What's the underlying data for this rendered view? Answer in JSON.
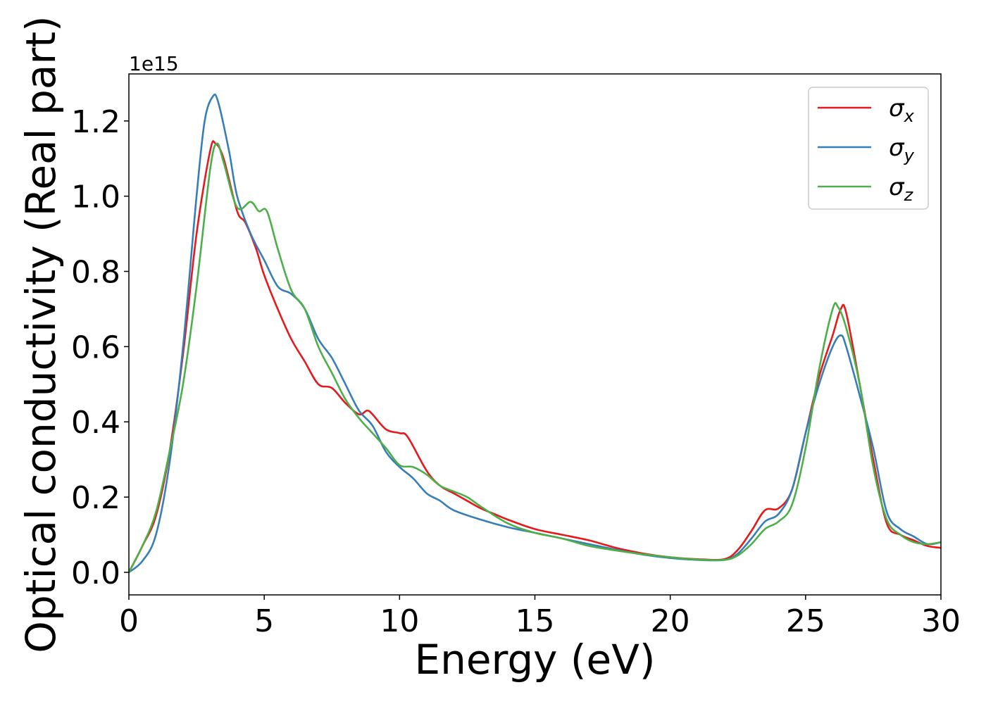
{
  "chart_data": {
    "type": "line",
    "title": "",
    "xlabel": "Energy (eV)",
    "ylabel": "Optical conductivity (Real part)",
    "y_offset_label": "1e15",
    "xlim": [
      0,
      30
    ],
    "ylim": [
      -0.06,
      1.325
    ],
    "x_ticks": [
      0,
      5,
      10,
      15,
      20,
      25,
      30
    ],
    "x_tick_labels": [
      "0",
      "5",
      "10",
      "15",
      "20",
      "25",
      "30"
    ],
    "y_ticks": [
      0.0,
      0.2,
      0.4,
      0.6,
      0.8,
      1.0,
      1.2
    ],
    "y_tick_labels": [
      "0.0",
      "0.2",
      "0.4",
      "0.6",
      "0.8",
      "1.0",
      "1.2"
    ],
    "grid": false,
    "legend_position": "top-right",
    "series": [
      {
        "name": "σx",
        "name_base": "σ",
        "name_sub": "x",
        "color": "#e41a1c",
        "points": [
          [
            0,
            0
          ],
          [
            0.5,
            0.07
          ],
          [
            1,
            0.15
          ],
          [
            1.5,
            0.32
          ],
          [
            2,
            0.58
          ],
          [
            2.5,
            0.9
          ],
          [
            3,
            1.12
          ],
          [
            3.2,
            1.14
          ],
          [
            3.5,
            1.1
          ],
          [
            4,
            0.96
          ],
          [
            4.3,
            0.93
          ],
          [
            4.7,
            0.86
          ],
          [
            5,
            0.79
          ],
          [
            5.5,
            0.7
          ],
          [
            6,
            0.62
          ],
          [
            6.5,
            0.56
          ],
          [
            7,
            0.5
          ],
          [
            7.5,
            0.49
          ],
          [
            8,
            0.45
          ],
          [
            8.5,
            0.42
          ],
          [
            8.8,
            0.43
          ],
          [
            9,
            0.42
          ],
          [
            9.5,
            0.38
          ],
          [
            10,
            0.37
          ],
          [
            10.3,
            0.36
          ],
          [
            11,
            0.27
          ],
          [
            11.5,
            0.23
          ],
          [
            12,
            0.21
          ],
          [
            12.5,
            0.19
          ],
          [
            13,
            0.17
          ],
          [
            13.5,
            0.155
          ],
          [
            14,
            0.14
          ],
          [
            15,
            0.115
          ],
          [
            16,
            0.1
          ],
          [
            17,
            0.085
          ],
          [
            18,
            0.065
          ],
          [
            19,
            0.05
          ],
          [
            20,
            0.04
          ],
          [
            21,
            0.035
          ],
          [
            22,
            0.035
          ],
          [
            22.5,
            0.06
          ],
          [
            23,
            0.11
          ],
          [
            23.5,
            0.165
          ],
          [
            24,
            0.17
          ],
          [
            24.5,
            0.22
          ],
          [
            25,
            0.37
          ],
          [
            25.5,
            0.52
          ],
          [
            26,
            0.63
          ],
          [
            26.3,
            0.7
          ],
          [
            26.5,
            0.69
          ],
          [
            27,
            0.5
          ],
          [
            27.5,
            0.3
          ],
          [
            28,
            0.13
          ],
          [
            28.5,
            0.1
          ],
          [
            29,
            0.085
          ],
          [
            29.5,
            0.07
          ],
          [
            30,
            0.065
          ]
        ]
      },
      {
        "name": "σy",
        "name_base": "σ",
        "name_sub": "y",
        "color": "#377eb8",
        "points": [
          [
            0,
            0
          ],
          [
            0.5,
            0.03
          ],
          [
            1,
            0.1
          ],
          [
            1.5,
            0.29
          ],
          [
            2,
            0.6
          ],
          [
            2.5,
            1.0
          ],
          [
            2.8,
            1.2
          ],
          [
            3.1,
            1.265
          ],
          [
            3.3,
            1.25
          ],
          [
            3.7,
            1.12
          ],
          [
            4,
            1.0
          ],
          [
            4.5,
            0.9
          ],
          [
            5,
            0.83
          ],
          [
            5.5,
            0.76
          ],
          [
            6,
            0.74
          ],
          [
            6.5,
            0.7
          ],
          [
            7,
            0.62
          ],
          [
            7.5,
            0.57
          ],
          [
            8,
            0.5
          ],
          [
            8.5,
            0.43
          ],
          [
            9,
            0.39
          ],
          [
            9.5,
            0.32
          ],
          [
            10,
            0.28
          ],
          [
            10.5,
            0.25
          ],
          [
            11,
            0.21
          ],
          [
            11.5,
            0.19
          ],
          [
            12,
            0.165
          ],
          [
            13,
            0.14
          ],
          [
            14,
            0.12
          ],
          [
            15,
            0.105
          ],
          [
            16,
            0.09
          ],
          [
            17,
            0.075
          ],
          [
            18,
            0.06
          ],
          [
            19,
            0.047
          ],
          [
            20,
            0.038
          ],
          [
            21,
            0.033
          ],
          [
            22,
            0.033
          ],
          [
            22.5,
            0.05
          ],
          [
            23,
            0.09
          ],
          [
            23.5,
            0.135
          ],
          [
            24,
            0.155
          ],
          [
            24.5,
            0.22
          ],
          [
            25,
            0.37
          ],
          [
            25.5,
            0.5
          ],
          [
            26,
            0.6
          ],
          [
            26.3,
            0.63
          ],
          [
            26.5,
            0.6
          ],
          [
            27,
            0.47
          ],
          [
            27.5,
            0.33
          ],
          [
            28,
            0.16
          ],
          [
            28.5,
            0.115
          ],
          [
            29,
            0.095
          ],
          [
            29.5,
            0.075
          ],
          [
            30,
            0.08
          ]
        ]
      },
      {
        "name": "σz",
        "name_base": "σ",
        "name_sub": "z",
        "color": "#4daf4a",
        "points": [
          [
            0,
            0
          ],
          [
            0.5,
            0.07
          ],
          [
            1,
            0.16
          ],
          [
            1.5,
            0.32
          ],
          [
            2,
            0.5
          ],
          [
            2.5,
            0.76
          ],
          [
            3,
            1.07
          ],
          [
            3.25,
            1.14
          ],
          [
            3.5,
            1.09
          ],
          [
            4,
            0.97
          ],
          [
            4.5,
            0.985
          ],
          [
            4.8,
            0.96
          ],
          [
            5.1,
            0.96
          ],
          [
            5.5,
            0.86
          ],
          [
            6,
            0.75
          ],
          [
            6.5,
            0.7
          ],
          [
            7,
            0.6
          ],
          [
            7.5,
            0.53
          ],
          [
            8,
            0.46
          ],
          [
            8.5,
            0.41
          ],
          [
            9,
            0.37
          ],
          [
            9.5,
            0.33
          ],
          [
            10,
            0.285
          ],
          [
            10.5,
            0.28
          ],
          [
            11,
            0.26
          ],
          [
            11.5,
            0.23
          ],
          [
            12,
            0.215
          ],
          [
            12.5,
            0.2
          ],
          [
            13,
            0.175
          ],
          [
            14,
            0.13
          ],
          [
            15,
            0.105
          ],
          [
            16,
            0.09
          ],
          [
            17,
            0.07
          ],
          [
            18,
            0.058
          ],
          [
            19,
            0.048
          ],
          [
            20,
            0.04
          ],
          [
            21,
            0.034
          ],
          [
            22,
            0.033
          ],
          [
            22.5,
            0.045
          ],
          [
            23,
            0.075
          ],
          [
            23.5,
            0.115
          ],
          [
            24,
            0.135
          ],
          [
            24.5,
            0.18
          ],
          [
            25,
            0.33
          ],
          [
            25.5,
            0.54
          ],
          [
            26,
            0.7
          ],
          [
            26.2,
            0.705
          ],
          [
            26.5,
            0.65
          ],
          [
            27,
            0.5
          ],
          [
            27.5,
            0.28
          ],
          [
            28,
            0.14
          ],
          [
            28.5,
            0.1
          ],
          [
            29,
            0.08
          ],
          [
            29.5,
            0.075
          ],
          [
            30,
            0.08
          ]
        ]
      }
    ]
  }
}
